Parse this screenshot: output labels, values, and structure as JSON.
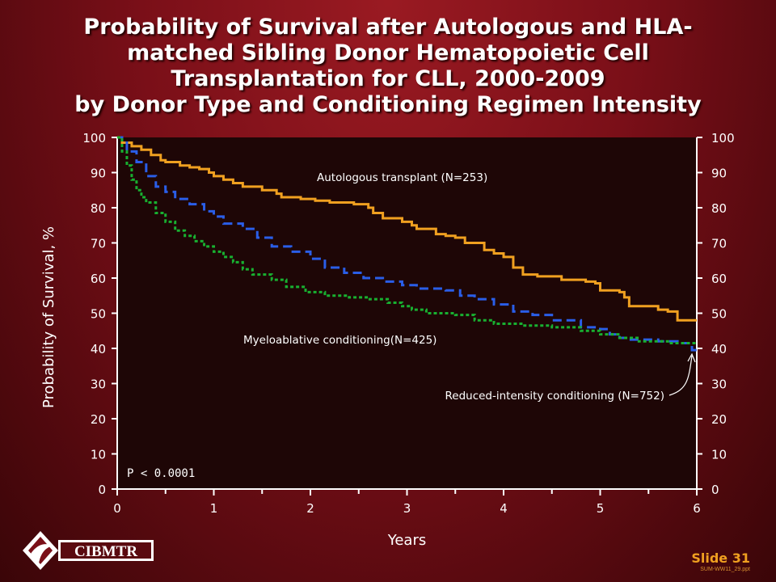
{
  "slide": {
    "title_lines": [
      "Probability of Survival after Autologous and HLA-",
      "matched Sibling Donor Hematopoietic Cell",
      "Transplantation for CLL, 2000-2009",
      "by Donor Type and Conditioning Regimen Intensity"
    ],
    "logo_text": "CIBMTR",
    "slide_number": "Slide 31",
    "file_name": "SUM-WW11_29.ppt"
  },
  "colors": {
    "background": "#7a0f18",
    "plot_bg": "#1e0606",
    "autologous": "#f0a020",
    "reduced_intensity": "#2a5ee8",
    "myeloablative": "#18b030",
    "text": "#ffffff"
  },
  "chart_data": {
    "type": "line",
    "title": "",
    "xlabel": "Years",
    "ylabel": "Probability of Survival, %",
    "xlim": [
      0,
      6
    ],
    "ylim": [
      0,
      100
    ],
    "x_ticks": [
      0,
      1,
      2,
      3,
      4,
      5,
      6
    ],
    "y_ticks": [
      0,
      10,
      20,
      30,
      40,
      50,
      60,
      70,
      80,
      90,
      100
    ],
    "y_axis_right": true,
    "step": true,
    "annotation": "P < 0.0001",
    "series": [
      {
        "name": "Autologous transplant (N=253)",
        "color": "#f0a020",
        "dash": "solid",
        "x": [
          0,
          0.05,
          0.15,
          0.25,
          0.35,
          0.45,
          0.5,
          0.65,
          0.75,
          0.85,
          0.95,
          1.0,
          1.1,
          1.2,
          1.3,
          1.5,
          1.65,
          1.7,
          1.9,
          2.05,
          2.2,
          2.45,
          2.6,
          2.65,
          2.75,
          2.95,
          3.05,
          3.1,
          3.3,
          3.4,
          3.5,
          3.6,
          3.8,
          3.9,
          4.0,
          4.1,
          4.2,
          4.35,
          4.6,
          4.85,
          4.95,
          5.0,
          5.2,
          5.25,
          5.3,
          5.6,
          5.7,
          5.8,
          6.0
        ],
        "y": [
          100,
          98.5,
          97.5,
          96.5,
          95,
          93.5,
          93,
          92,
          91.5,
          91,
          90,
          89,
          88,
          87,
          86,
          85,
          84,
          83,
          82.5,
          82,
          81.5,
          81,
          80,
          78.5,
          77,
          76,
          75,
          74,
          72.5,
          72,
          71.5,
          70,
          68,
          67,
          66,
          63,
          61,
          60.5,
          59.5,
          59,
          58.5,
          56.5,
          56,
          54.5,
          52,
          51,
          50.5,
          48,
          48
        ]
      },
      {
        "name": "Reduced-intensity conditioning (N=752)",
        "color": "#2a5ee8",
        "dash": "dashed",
        "x": [
          0,
          0.05,
          0.1,
          0.2,
          0.3,
          0.4,
          0.5,
          0.6,
          0.75,
          0.9,
          1.0,
          1.1,
          1.3,
          1.45,
          1.6,
          1.8,
          2.0,
          2.15,
          2.35,
          2.55,
          2.75,
          2.95,
          3.1,
          3.4,
          3.55,
          3.7,
          3.9,
          4.1,
          4.3,
          4.5,
          4.8,
          5.0,
          5.1,
          5.2,
          5.3,
          5.6,
          5.8,
          5.95,
          6.0
        ],
        "y": [
          100,
          98.5,
          96,
          93,
          89,
          86,
          84.5,
          82.5,
          81,
          79,
          77.5,
          75.5,
          74,
          71.5,
          69,
          67.5,
          65.5,
          63,
          61.5,
          60,
          59,
          58,
          57,
          56.5,
          55,
          54,
          52.5,
          50.5,
          49.5,
          48,
          46,
          45.5,
          44,
          43,
          42.5,
          42,
          41.5,
          39.5,
          38.5
        ]
      },
      {
        "name": "Myeloablative conditioning(N=425)",
        "color": "#18b030",
        "dash": "dotted",
        "x": [
          0,
          0.05,
          0.1,
          0.15,
          0.2,
          0.25,
          0.3,
          0.4,
          0.5,
          0.6,
          0.7,
          0.8,
          0.9,
          1.0,
          1.1,
          1.2,
          1.3,
          1.4,
          1.6,
          1.75,
          1.95,
          2.15,
          2.4,
          2.6,
          2.8,
          2.95,
          3.05,
          3.2,
          3.5,
          3.7,
          3.9,
          4.2,
          4.5,
          4.8,
          5.0,
          5.2,
          5.4,
          5.7,
          6.0
        ],
        "y": [
          100,
          96,
          92,
          88,
          85,
          83,
          81.5,
          78.5,
          76,
          73.5,
          72,
          70.5,
          69,
          67.5,
          66,
          64.5,
          62.5,
          61,
          59.5,
          57.5,
          56,
          55,
          54.5,
          54,
          53,
          52,
          51,
          50,
          49.5,
          48,
          47,
          46.5,
          46,
          45,
          44,
          43,
          42,
          41.5,
          41.5
        ]
      }
    ]
  }
}
